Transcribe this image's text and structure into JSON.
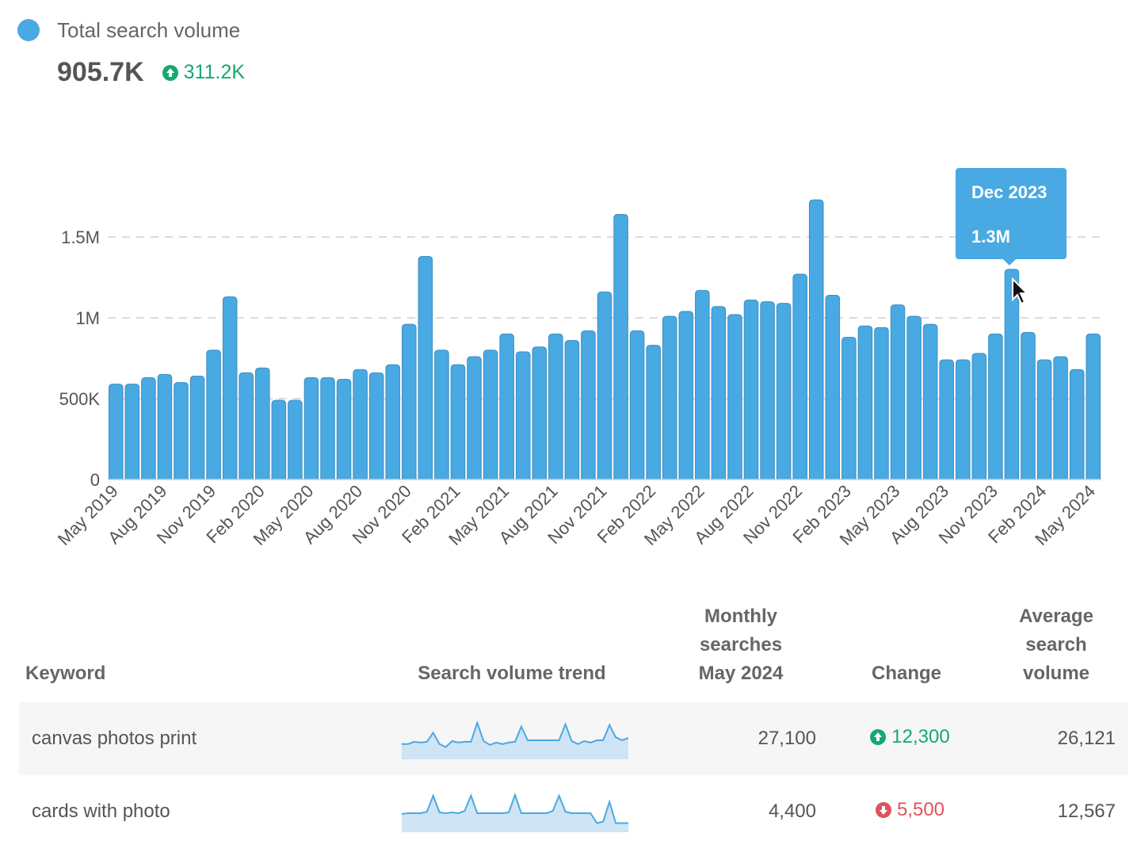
{
  "header": {
    "legend_label": "Total search volume",
    "total_value": "905.7K",
    "delta_value": "311.2K",
    "delta_direction": "up",
    "series_color": "#49a9e2"
  },
  "tooltip": {
    "date": "Dec 2023",
    "value": "1.3M"
  },
  "chart_data": {
    "type": "bar",
    "series": [
      {
        "name": "Total search volume",
        "color": "#49a9e2"
      }
    ],
    "categories": [
      "May 2019",
      "Jun 2019",
      "Jul 2019",
      "Aug 2019",
      "Sep 2019",
      "Oct 2019",
      "Nov 2019",
      "Dec 2019",
      "Jan 2020",
      "Feb 2020",
      "Mar 2020",
      "Apr 2020",
      "May 2020",
      "Jun 2020",
      "Jul 2020",
      "Aug 2020",
      "Sep 2020",
      "Oct 2020",
      "Nov 2020",
      "Dec 2020",
      "Jan 2021",
      "Feb 2021",
      "Mar 2021",
      "Apr 2021",
      "May 2021",
      "Jun 2021",
      "Jul 2021",
      "Aug 2021",
      "Sep 2021",
      "Oct 2021",
      "Nov 2021",
      "Dec 2021",
      "Jan 2022",
      "Feb 2022",
      "Mar 2022",
      "Apr 2022",
      "May 2022",
      "Jun 2022",
      "Jul 2022",
      "Aug 2022",
      "Sep 2022",
      "Oct 2022",
      "Nov 2022",
      "Dec 2022",
      "Jan 2023",
      "Feb 2023",
      "Mar 2023",
      "Apr 2023",
      "May 2023",
      "Jun 2023",
      "Jul 2023",
      "Aug 2023",
      "Sep 2023",
      "Oct 2023",
      "Nov 2023",
      "Dec 2023",
      "Jan 2024",
      "Feb 2024",
      "Mar 2024",
      "Apr 2024",
      "May 2024"
    ],
    "values": [
      590000,
      590000,
      630000,
      650000,
      600000,
      640000,
      800000,
      1130000,
      660000,
      690000,
      490000,
      490000,
      630000,
      630000,
      620000,
      680000,
      660000,
      710000,
      960000,
      1380000,
      800000,
      710000,
      760000,
      800000,
      900000,
      790000,
      820000,
      900000,
      860000,
      920000,
      1160000,
      1640000,
      920000,
      830000,
      1010000,
      1040000,
      1170000,
      1070000,
      1020000,
      1110000,
      1100000,
      1090000,
      1270000,
      1730000,
      1140000,
      880000,
      950000,
      940000,
      1080000,
      1010000,
      960000,
      740000,
      740000,
      780000,
      900000,
      1300000,
      910000,
      740000,
      760000,
      680000,
      900000
    ],
    "tick_labels": [
      "May 2019",
      "Aug 2019",
      "Nov 2019",
      "Feb 2020",
      "May 2020",
      "Aug 2020",
      "Nov 2020",
      "Feb 2021",
      "May 2021",
      "Aug 2021",
      "Nov 2021",
      "Feb 2022",
      "May 2022",
      "Aug 2022",
      "Nov 2022",
      "Feb 2023",
      "May 2023",
      "Aug 2023",
      "Nov 2023",
      "Feb 2024",
      "May 2024"
    ],
    "y_ticks": [
      0,
      500000,
      1000000,
      1500000
    ],
    "y_tick_labels": [
      "0",
      "500K",
      "1M",
      "1.5M"
    ],
    "ylim": [
      0,
      1750000
    ],
    "grid": true,
    "highlight": {
      "category": "Dec 2023",
      "label": "1.3M"
    }
  },
  "table": {
    "headers": {
      "keyword": "Keyword",
      "trend": "Search volume trend",
      "monthly": [
        "Monthly",
        "searches",
        "May 2024"
      ],
      "change": "Change",
      "average": [
        "Average",
        "search",
        "volume"
      ]
    },
    "rows": [
      {
        "keyword": "canvas photos print",
        "monthly": "27,100",
        "change": "12,300",
        "direction": "up",
        "average": "26,121",
        "trend": [
          20,
          20,
          23,
          22,
          23,
          35,
          20,
          16,
          24,
          22,
          23,
          23,
          48,
          24,
          19,
          22,
          20,
          22,
          23,
          43,
          25,
          25,
          25,
          25,
          25,
          25,
          46,
          24,
          20,
          24,
          22,
          25,
          25,
          45,
          29,
          25,
          28
        ],
        "trend_color": "#49a9e2"
      },
      {
        "keyword": "cards with photo",
        "monthly": "4,400",
        "change": "5,500",
        "direction": "down",
        "average": "12,567",
        "trend": [
          24,
          25,
          25,
          25,
          27,
          48,
          26,
          25,
          26,
          25,
          28,
          48,
          25,
          25,
          25,
          25,
          25,
          26,
          49,
          25,
          25,
          25,
          25,
          25,
          28,
          48,
          27,
          25,
          25,
          25,
          25,
          12,
          14,
          40,
          12,
          12,
          12
        ],
        "trend_color": "#49a9e2"
      }
    ]
  }
}
